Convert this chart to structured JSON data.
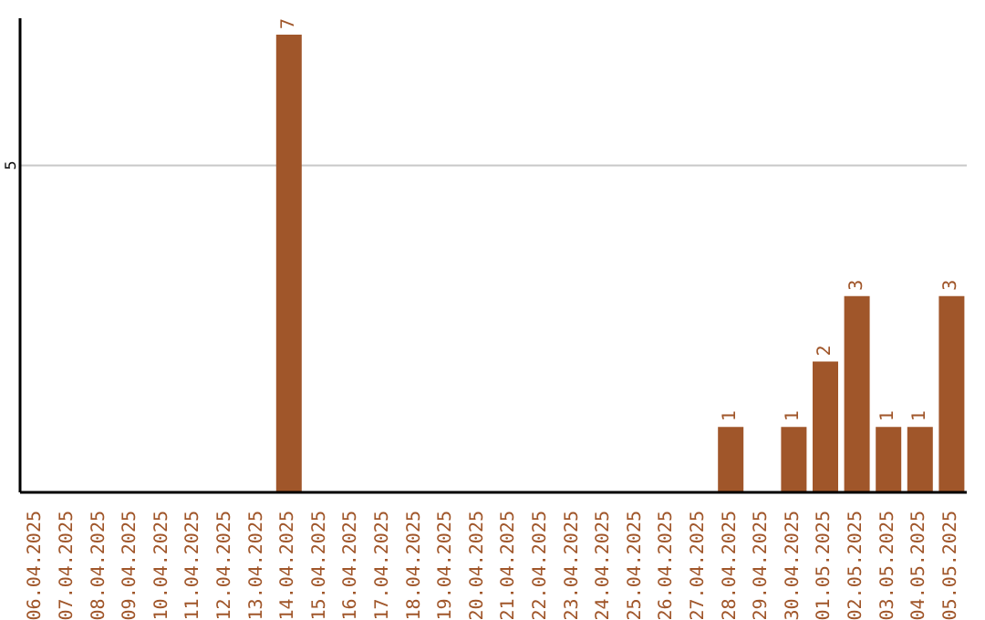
{
  "chart_data": {
    "type": "bar",
    "categories": [
      "06.04.2025",
      "07.04.2025",
      "08.04.2025",
      "09.04.2025",
      "10.04.2025",
      "11.04.2025",
      "12.04.2025",
      "13.04.2025",
      "14.04.2025",
      "15.04.2025",
      "16.04.2025",
      "17.04.2025",
      "18.04.2025",
      "19.04.2025",
      "20.04.2025",
      "21.04.2025",
      "22.04.2025",
      "23.04.2025",
      "24.04.2025",
      "25.04.2025",
      "26.04.2025",
      "27.04.2025",
      "28.04.2025",
      "29.04.2025",
      "30.04.2025",
      "01.05.2025",
      "02.05.2025",
      "03.05.2025",
      "04.05.2025",
      "05.05.2025"
    ],
    "values": [
      null,
      null,
      null,
      null,
      null,
      null,
      null,
      null,
      7,
      null,
      null,
      null,
      null,
      null,
      null,
      null,
      null,
      null,
      null,
      null,
      null,
      null,
      1,
      null,
      1,
      2,
      3,
      1,
      1,
      3
    ],
    "color": "#a0562a",
    "ylim": [
      0,
      7.25
    ],
    "yticks": [
      5
    ],
    "grid": "y",
    "data_labels": true
  }
}
